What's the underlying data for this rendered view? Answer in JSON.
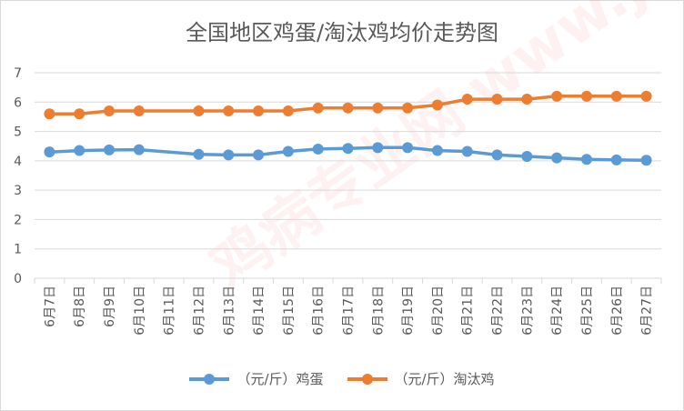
{
  "chart_data": {
    "type": "line",
    "title": "全国地区鸡蛋/淘汰鸡均价走势图",
    "categories": [
      "6月7日",
      "6月8日",
      "6月9日",
      "6月10日",
      "6月11日",
      "6月12日",
      "6月13日",
      "6月14日",
      "6月15日",
      "6月16日",
      "6月17日",
      "6月18日",
      "6月19日",
      "6月20日",
      "6月21日",
      "6月22日",
      "6月23日",
      "6月24日",
      "6月25日",
      "6月26日",
      "6月27日"
    ],
    "x_tick_labels": [
      "6月7日",
      "6月8日",
      "6月9日",
      "6月10日",
      "6月11日",
      "6月12日",
      "6月13日",
      "6月14日",
      "6月15日",
      "6月16日",
      "6月17日",
      "6月18日",
      "6月19日",
      "6月20日",
      "6月21日",
      "6月22日",
      "6月23日",
      "6月24日",
      "6月25日",
      "6月26日",
      "6月27日"
    ],
    "series": [
      {
        "name": "（元/斤）鸡蛋",
        "color": "#5b9bd5",
        "values": [
          4.3,
          4.35,
          4.37,
          4.38,
          null,
          4.22,
          4.2,
          4.2,
          4.32,
          4.4,
          4.42,
          4.45,
          4.45,
          4.35,
          4.32,
          4.2,
          4.15,
          4.1,
          4.05,
          4.03,
          4.02
        ]
      },
      {
        "name": "（元/斤）淘汰鸡",
        "color": "#ed7d31",
        "values": [
          5.6,
          5.6,
          5.7,
          5.7,
          null,
          5.7,
          5.7,
          5.7,
          5.7,
          5.8,
          5.8,
          5.8,
          5.8,
          5.9,
          6.1,
          6.1,
          6.1,
          6.2,
          6.2,
          6.2,
          6.2
        ]
      }
    ],
    "ylim": [
      0,
      7
    ],
    "yticks": [
      0,
      1,
      2,
      3,
      4,
      5,
      6,
      7
    ],
    "grid": true,
    "legend_position": "bottom"
  },
  "watermark": "鸡病专业网 www.jbzyw.com 行业 兵 传"
}
